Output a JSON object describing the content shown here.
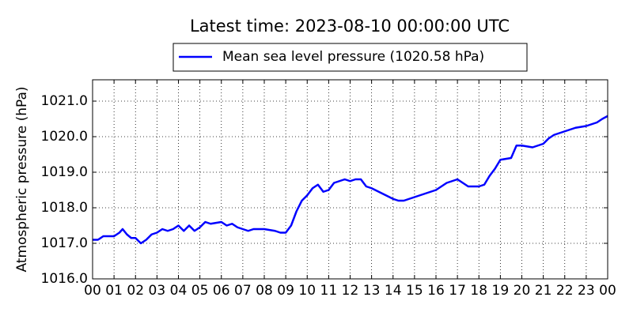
{
  "chart_data": {
    "type": "line",
    "title": "Latest time: 2023-08-10 00:00:00 UTC",
    "ylabel": "Atmospheric pressure (hPa)",
    "legend": "top",
    "grid": true,
    "xlim": [
      0,
      24
    ],
    "ylim": [
      1016,
      1021.6
    ],
    "xticks": [
      {
        "value": 0,
        "label": "00"
      },
      {
        "value": 1,
        "label": "01"
      },
      {
        "value": 2,
        "label": "02"
      },
      {
        "value": 3,
        "label": "03"
      },
      {
        "value": 4,
        "label": "04"
      },
      {
        "value": 5,
        "label": "05"
      },
      {
        "value": 6,
        "label": "06"
      },
      {
        "value": 7,
        "label": "07"
      },
      {
        "value": 8,
        "label": "08"
      },
      {
        "value": 9,
        "label": "09"
      },
      {
        "value": 10,
        "label": "10"
      },
      {
        "value": 11,
        "label": "11"
      },
      {
        "value": 12,
        "label": "12"
      },
      {
        "value": 13,
        "label": "13"
      },
      {
        "value": 14,
        "label": "14"
      },
      {
        "value": 15,
        "label": "15"
      },
      {
        "value": 16,
        "label": "16"
      },
      {
        "value": 17,
        "label": "17"
      },
      {
        "value": 18,
        "label": "18"
      },
      {
        "value": 19,
        "label": "19"
      },
      {
        "value": 20,
        "label": "20"
      },
      {
        "value": 21,
        "label": "21"
      },
      {
        "value": 22,
        "label": "22"
      },
      {
        "value": 23,
        "label": "23"
      },
      {
        "value": 24,
        "label": "00"
      }
    ],
    "yticks": [
      {
        "value": 1016,
        "label": "1016.0"
      },
      {
        "value": 1017,
        "label": "1017.0"
      },
      {
        "value": 1018,
        "label": "1018.0"
      },
      {
        "value": 1019,
        "label": "1019.0"
      },
      {
        "value": 1020,
        "label": "1020.0"
      },
      {
        "value": 1021,
        "label": "1021.0"
      }
    ],
    "x": [
      0,
      0.25,
      0.5,
      1,
      1.25,
      1.4,
      1.6,
      1.8,
      2,
      2.25,
      2.5,
      2.75,
      3,
      3.25,
      3.5,
      3.75,
      4,
      4.25,
      4.5,
      4.75,
      5,
      5.25,
      5.5,
      6,
      6.25,
      6.5,
      6.75,
      7,
      7.25,
      7.5,
      8,
      8.5,
      8.75,
      9,
      9.25,
      9.5,
      9.75,
      10,
      10.25,
      10.5,
      10.75,
      11,
      11.25,
      11.5,
      11.75,
      12,
      12.25,
      12.5,
      12.75,
      13,
      13.5,
      14,
      14.25,
      14.5,
      14.75,
      15,
      15.5,
      16,
      16.25,
      16.5,
      17,
      17.25,
      17.5,
      18,
      18.25,
      18.5,
      18.75,
      19,
      19.5,
      19.75,
      20,
      20.5,
      21,
      21.25,
      21.5,
      22,
      22.5,
      23,
      23.25,
      23.5,
      23.75,
      24
    ],
    "series": [
      {
        "name": "Mean sea level pressure (1020.58 hPa)",
        "color": "#0000ff",
        "values": [
          1017.1,
          1017.1,
          1017.2,
          1017.2,
          1017.3,
          1017.4,
          1017.25,
          1017.15,
          1017.15,
          1017.0,
          1017.1,
          1017.25,
          1017.3,
          1017.4,
          1017.35,
          1017.4,
          1017.5,
          1017.35,
          1017.5,
          1017.35,
          1017.45,
          1017.6,
          1017.55,
          1017.6,
          1017.5,
          1017.55,
          1017.45,
          1017.4,
          1017.35,
          1017.4,
          1017.4,
          1017.35,
          1017.3,
          1017.3,
          1017.5,
          1017.9,
          1018.2,
          1018.35,
          1018.55,
          1018.65,
          1018.45,
          1018.5,
          1018.7,
          1018.75,
          1018.8,
          1018.75,
          1018.8,
          1018.8,
          1018.6,
          1018.55,
          1018.4,
          1018.25,
          1018.2,
          1018.2,
          1018.25,
          1018.3,
          1018.4,
          1018.5,
          1018.6,
          1018.7,
          1018.8,
          1018.7,
          1018.6,
          1018.6,
          1018.65,
          1018.9,
          1019.1,
          1019.35,
          1019.4,
          1019.75,
          1019.75,
          1019.7,
          1019.8,
          1019.95,
          1020.05,
          1020.15,
          1020.25,
          1020.3,
          1020.35,
          1020.4,
          1020.5,
          1020.58
        ]
      }
    ]
  }
}
